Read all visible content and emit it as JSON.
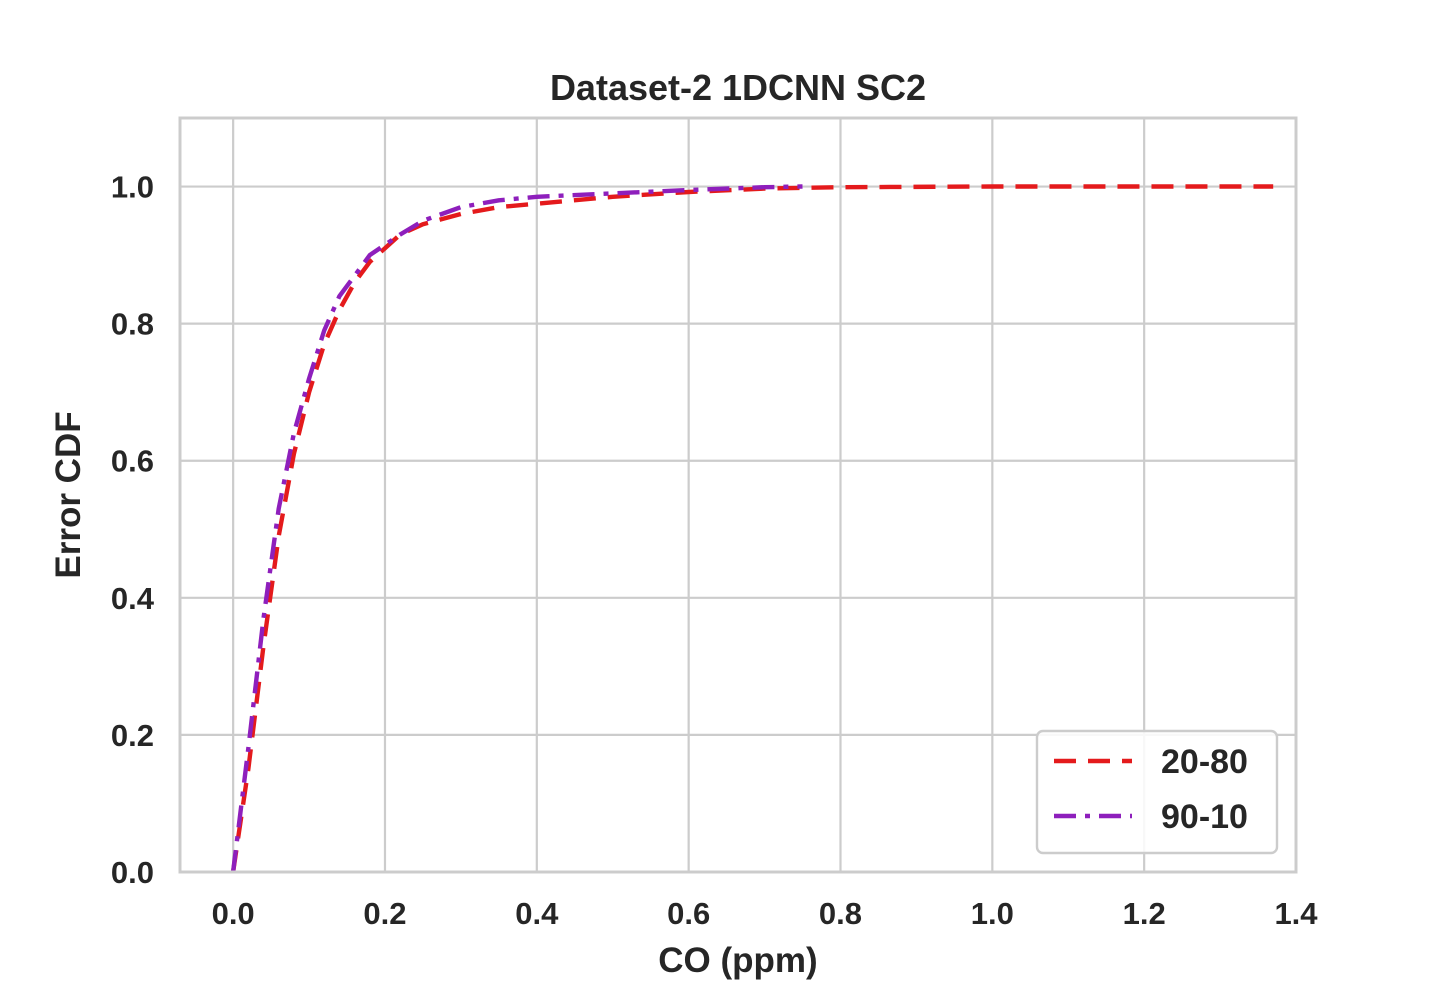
{
  "chart_data": {
    "type": "line",
    "title": "Dataset-2 1DCNN SC2",
    "xlabel": "CO (ppm)",
    "ylabel": "Error CDF",
    "xlim": [
      -0.07,
      1.4
    ],
    "ylim": [
      0.0,
      1.1
    ],
    "xticks": [
      0.0,
      0.2,
      0.4,
      0.6,
      0.8,
      1.0,
      1.2,
      1.4
    ],
    "xtick_labels": [
      "0.0",
      "0.2",
      "0.4",
      "0.6",
      "0.8",
      "1.0",
      "1.2",
      "1.4"
    ],
    "yticks": [
      0.0,
      0.2,
      0.4,
      0.6,
      0.8,
      1.0
    ],
    "ytick_labels": [
      "0.0",
      "0.2",
      "0.4",
      "0.6",
      "0.8",
      "1.0"
    ],
    "grid": true,
    "legend_position": "lower-right",
    "series": [
      {
        "name": "20-80",
        "color": "#e41a1c",
        "dash": "dashed",
        "x": [
          0.0,
          0.02,
          0.04,
          0.06,
          0.08,
          0.1,
          0.12,
          0.14,
          0.16,
          0.18,
          0.2,
          0.22,
          0.25,
          0.3,
          0.35,
          0.4,
          0.5,
          0.6,
          0.7,
          0.8,
          1.0,
          1.2,
          1.37
        ],
        "y": [
          0.0,
          0.15,
          0.33,
          0.49,
          0.61,
          0.7,
          0.77,
          0.82,
          0.86,
          0.89,
          0.91,
          0.93,
          0.945,
          0.96,
          0.97,
          0.975,
          0.985,
          0.992,
          0.997,
          0.999,
          1.0,
          1.0,
          1.0
        ]
      },
      {
        "name": "90-10",
        "color": "#8e1fbc",
        "dash": "dashdot",
        "x": [
          0.0,
          0.02,
          0.04,
          0.06,
          0.08,
          0.1,
          0.12,
          0.14,
          0.16,
          0.18,
          0.2,
          0.22,
          0.25,
          0.3,
          0.35,
          0.4,
          0.5,
          0.6,
          0.7,
          0.75
        ],
        "y": [
          0.0,
          0.18,
          0.37,
          0.53,
          0.64,
          0.72,
          0.79,
          0.84,
          0.87,
          0.9,
          0.915,
          0.93,
          0.95,
          0.97,
          0.98,
          0.985,
          0.99,
          0.995,
          0.999,
          1.0
        ]
      }
    ]
  }
}
